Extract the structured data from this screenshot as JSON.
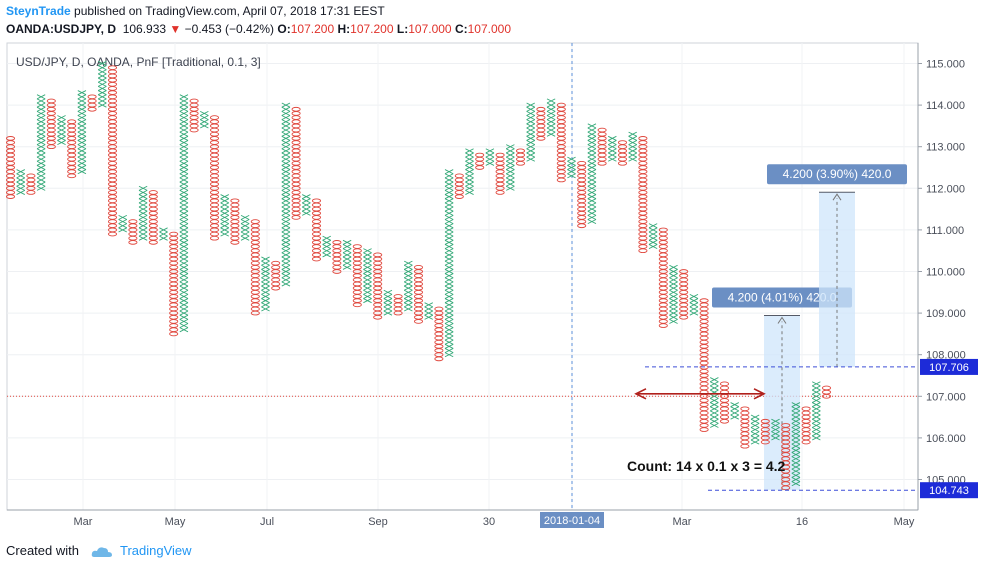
{
  "header": {
    "author": "SteynTrade",
    "published_text": "published on TradingView.com, April 07, 2018 17:31 EEST",
    "symbol": "OANDA:USDJPY, D",
    "last_price": "106.933",
    "change_arrow": "▼",
    "change": "−0.453 (−0.42%)",
    "open_label": "O:",
    "open": "107.200",
    "high_label": "H:",
    "high": "107.200",
    "low_label": "L:",
    "low": "107.000",
    "close_label": "C:",
    "close": "107.000"
  },
  "footer": {
    "created_with": "Created with",
    "brand": "TradingView"
  },
  "colors": {
    "x_color": "#33a877",
    "o_color": "#e0483e",
    "accent": "#2196f3",
    "label_bg": "#6b8fc4",
    "marker_bg": "#1d2bd8"
  },
  "chart_data": {
    "type": "point-and-figure",
    "title": "USD/JPY, D, OANDA, PnF [Traditional, 0.1, 3]",
    "box_size": 0.1,
    "reversal": 3,
    "ylim": [
      104.45,
      115.35
    ],
    "y_ticks": [
      "115.000",
      "114.000",
      "113.000",
      "112.000",
      "111.000",
      "110.000",
      "109.000",
      "108.000",
      "107.000",
      "106.000",
      "105.000"
    ],
    "x_ticks": [
      "Mar",
      "May",
      "Jul",
      "Sep",
      "30",
      "2018-01-04",
      "Mar",
      "16",
      "May"
    ],
    "highlighted_date": "2018-01-04",
    "current_price": 107.0,
    "price_markers": [
      "107.706",
      "104.743"
    ],
    "columns": [
      {
        "t": "O",
        "lo": 111.8,
        "hi": 113.2
      },
      {
        "t": "X",
        "lo": 111.9,
        "hi": 112.4
      },
      {
        "t": "O",
        "lo": 111.9,
        "hi": 112.3
      },
      {
        "t": "X",
        "lo": 112.0,
        "hi": 114.2
      },
      {
        "t": "O",
        "lo": 113.0,
        "hi": 114.1
      },
      {
        "t": "X",
        "lo": 113.1,
        "hi": 113.7
      },
      {
        "t": "O",
        "lo": 112.3,
        "hi": 113.6
      },
      {
        "t": "X",
        "lo": 112.4,
        "hi": 114.3
      },
      {
        "t": "O",
        "lo": 113.9,
        "hi": 114.2
      },
      {
        "t": "X",
        "lo": 114.0,
        "hi": 115.0
      },
      {
        "t": "O",
        "lo": 110.9,
        "hi": 114.9
      },
      {
        "t": "X",
        "lo": 111.0,
        "hi": 111.3
      },
      {
        "t": "O",
        "lo": 110.7,
        "hi": 111.2
      },
      {
        "t": "X",
        "lo": 110.8,
        "hi": 112.0
      },
      {
        "t": "O",
        "lo": 110.7,
        "hi": 111.9
      },
      {
        "t": "X",
        "lo": 110.8,
        "hi": 111.0
      },
      {
        "t": "O",
        "lo": 108.5,
        "hi": 110.9
      },
      {
        "t": "X",
        "lo": 108.6,
        "hi": 114.2
      },
      {
        "t": "O",
        "lo": 113.4,
        "hi": 114.1
      },
      {
        "t": "X",
        "lo": 113.5,
        "hi": 113.8
      },
      {
        "t": "O",
        "lo": 110.8,
        "hi": 113.7
      },
      {
        "t": "X",
        "lo": 110.9,
        "hi": 111.8
      },
      {
        "t": "O",
        "lo": 110.7,
        "hi": 111.7
      },
      {
        "t": "X",
        "lo": 110.8,
        "hi": 111.3
      },
      {
        "t": "O",
        "lo": 109.0,
        "hi": 111.2
      },
      {
        "t": "X",
        "lo": 109.1,
        "hi": 110.3
      },
      {
        "t": "O",
        "lo": 109.6,
        "hi": 110.2
      },
      {
        "t": "X",
        "lo": 109.7,
        "hi": 114.0
      },
      {
        "t": "O",
        "lo": 111.3,
        "hi": 113.9
      },
      {
        "t": "X",
        "lo": 111.4,
        "hi": 111.8
      },
      {
        "t": "O",
        "lo": 110.3,
        "hi": 111.7
      },
      {
        "t": "X",
        "lo": 110.4,
        "hi": 110.8
      },
      {
        "t": "O",
        "lo": 110.0,
        "hi": 110.7
      },
      {
        "t": "X",
        "lo": 110.1,
        "hi": 110.7
      },
      {
        "t": "O",
        "lo": 109.2,
        "hi": 110.6
      },
      {
        "t": "X",
        "lo": 109.3,
        "hi": 110.5
      },
      {
        "t": "O",
        "lo": 108.9,
        "hi": 110.4
      },
      {
        "t": "X",
        "lo": 109.0,
        "hi": 109.5
      },
      {
        "t": "O",
        "lo": 109.0,
        "hi": 109.4
      },
      {
        "t": "X",
        "lo": 109.1,
        "hi": 110.2
      },
      {
        "t": "O",
        "lo": 108.8,
        "hi": 110.1
      },
      {
        "t": "X",
        "lo": 108.9,
        "hi": 109.2
      },
      {
        "t": "O",
        "lo": 107.9,
        "hi": 109.1
      },
      {
        "t": "X",
        "lo": 108.0,
        "hi": 112.4
      },
      {
        "t": "O",
        "lo": 111.8,
        "hi": 112.3
      },
      {
        "t": "X",
        "lo": 111.9,
        "hi": 112.9
      },
      {
        "t": "O",
        "lo": 112.5,
        "hi": 112.8
      },
      {
        "t": "X",
        "lo": 112.6,
        "hi": 112.9
      },
      {
        "t": "O",
        "lo": 111.9,
        "hi": 112.8
      },
      {
        "t": "X",
        "lo": 112.0,
        "hi": 113.0
      },
      {
        "t": "O",
        "lo": 112.6,
        "hi": 112.9
      },
      {
        "t": "X",
        "lo": 112.7,
        "hi": 114.0
      },
      {
        "t": "O",
        "lo": 113.2,
        "hi": 113.9
      },
      {
        "t": "X",
        "lo": 113.3,
        "hi": 114.1
      },
      {
        "t": "O",
        "lo": 112.2,
        "hi": 114.0
      },
      {
        "t": "X",
        "lo": 112.3,
        "hi": 112.7
      },
      {
        "t": "O",
        "lo": 111.1,
        "hi": 112.6
      },
      {
        "t": "X",
        "lo": 111.2,
        "hi": 113.5
      },
      {
        "t": "O",
        "lo": 112.6,
        "hi": 113.4
      },
      {
        "t": "X",
        "lo": 112.7,
        "hi": 113.2
      },
      {
        "t": "O",
        "lo": 112.6,
        "hi": 113.1
      },
      {
        "t": "X",
        "lo": 112.7,
        "hi": 113.3
      },
      {
        "t": "O",
        "lo": 110.5,
        "hi": 113.2
      },
      {
        "t": "X",
        "lo": 110.6,
        "hi": 111.1
      },
      {
        "t": "O",
        "lo": 108.7,
        "hi": 111.0
      },
      {
        "t": "X",
        "lo": 108.8,
        "hi": 110.1
      },
      {
        "t": "O",
        "lo": 108.9,
        "hi": 110.0
      },
      {
        "t": "X",
        "lo": 109.0,
        "hi": 109.4
      },
      {
        "t": "O",
        "lo": 106.2,
        "hi": 109.3
      },
      {
        "t": "X",
        "lo": 106.3,
        "hi": 107.4
      },
      {
        "t": "O",
        "lo": 106.4,
        "hi": 107.3
      },
      {
        "t": "X",
        "lo": 106.5,
        "hi": 106.8
      },
      {
        "t": "O",
        "lo": 105.8,
        "hi": 106.7
      },
      {
        "t": "X",
        "lo": 105.9,
        "hi": 106.5
      },
      {
        "t": "O",
        "lo": 105.9,
        "hi": 106.4
      },
      {
        "t": "X",
        "lo": 106.0,
        "hi": 106.4
      },
      {
        "t": "O",
        "lo": 104.8,
        "hi": 106.3
      },
      {
        "t": "X",
        "lo": 104.9,
        "hi": 106.8
      },
      {
        "t": "O",
        "lo": 105.9,
        "hi": 106.7
      },
      {
        "t": "X",
        "lo": 106.0,
        "hi": 107.3
      },
      {
        "t": "O",
        "lo": 107.0,
        "hi": 107.2
      }
    ],
    "projections": [
      {
        "label": "4.200 (4.01%) 420.0",
        "from": 104.743,
        "to": 108.943
      },
      {
        "label": "4.200 (3.90%) 420.0",
        "from": 107.706,
        "to": 111.906
      }
    ],
    "count_label": "Count: 14 x 0.1 x 3 = 4.2"
  }
}
